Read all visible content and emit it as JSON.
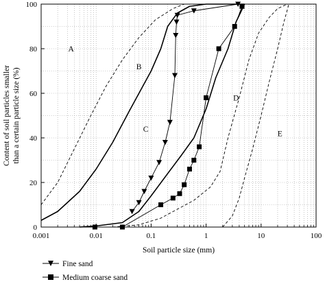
{
  "chart_data": {
    "type": "line",
    "x_scale": "log",
    "xlim": [
      0.001,
      100
    ],
    "ylim": [
      0,
      100
    ],
    "xlabel": "Soil particle size (mm)",
    "ylabel_lines": [
      "Content of soil particles smaller",
      "than a certain particle size (%)"
    ],
    "x_ticks": [
      {
        "value": 0.001,
        "label": "0.001"
      },
      {
        "value": 0.01,
        "label": "0.01"
      },
      {
        "value": 0.1,
        "label": "0.1"
      },
      {
        "value": 1,
        "label": "1"
      },
      {
        "value": 10,
        "label": "10"
      },
      {
        "value": 100,
        "label": "100"
      }
    ],
    "y_ticks": [
      {
        "value": 0,
        "label": "0"
      },
      {
        "value": 20,
        "label": "20"
      },
      {
        "value": 40,
        "label": "40"
      },
      {
        "value": 60,
        "label": "60"
      },
      {
        "value": 80,
        "label": "80"
      },
      {
        "value": 100,
        "label": "100"
      }
    ],
    "grid": "dotted",
    "legend_position": "bottom-left",
    "region_labels": [
      {
        "label": "A",
        "x": 0.0035,
        "y": 80
      },
      {
        "label": "B",
        "x": 0.06,
        "y": 72
      },
      {
        "label": "C",
        "x": 0.08,
        "y": 44
      },
      {
        "label": "D",
        "x": 3.5,
        "y": 58
      },
      {
        "label": "E",
        "x": 22,
        "y": 42
      }
    ],
    "boundaries": [
      {
        "style": "dashed",
        "points": [
          [
            0.001,
            10
          ],
          [
            0.002,
            20
          ],
          [
            0.004,
            35
          ],
          [
            0.008,
            50
          ],
          [
            0.015,
            63
          ],
          [
            0.03,
            75
          ],
          [
            0.06,
            85
          ],
          [
            0.12,
            93
          ],
          [
            0.25,
            98
          ],
          [
            0.4,
            100
          ]
        ]
      },
      {
        "style": "solid",
        "points": [
          [
            0.001,
            3
          ],
          [
            0.002,
            7
          ],
          [
            0.005,
            16
          ],
          [
            0.01,
            26
          ],
          [
            0.02,
            38
          ],
          [
            0.04,
            52
          ],
          [
            0.07,
            63
          ],
          [
            0.1,
            70
          ],
          [
            0.15,
            80
          ],
          [
            0.2,
            90
          ],
          [
            0.3,
            96
          ],
          [
            0.5,
            99
          ],
          [
            1,
            100
          ],
          [
            5,
            100
          ]
        ]
      },
      {
        "style": "solid",
        "points": [
          [
            0.005,
            0
          ],
          [
            0.01,
            0.5
          ],
          [
            0.03,
            2
          ],
          [
            0.06,
            7
          ],
          [
            0.1,
            14
          ],
          [
            0.2,
            24
          ],
          [
            0.35,
            32
          ],
          [
            0.6,
            40
          ],
          [
            1,
            53
          ],
          [
            1.5,
            67
          ],
          [
            2.5,
            80
          ],
          [
            3.5,
            92
          ],
          [
            5,
            100
          ]
        ]
      },
      {
        "style": "dashed",
        "points": [
          [
            0.02,
            0
          ],
          [
            0.06,
            1
          ],
          [
            0.15,
            4
          ],
          [
            0.3,
            8
          ],
          [
            0.6,
            12
          ],
          [
            1.2,
            18
          ],
          [
            1.8,
            25
          ],
          [
            2.5,
            40
          ],
          [
            4,
            58
          ],
          [
            6,
            75
          ],
          [
            9,
            87
          ],
          [
            14,
            94
          ],
          [
            20,
            98
          ],
          [
            30,
            100
          ]
        ]
      },
      {
        "style": "dashed",
        "points": [
          [
            2,
            0
          ],
          [
            3,
            5
          ],
          [
            4,
            13
          ],
          [
            5,
            22
          ],
          [
            7,
            35
          ],
          [
            10,
            50
          ],
          [
            14,
            65
          ],
          [
            20,
            80
          ],
          [
            26,
            92
          ],
          [
            32,
            100
          ]
        ]
      }
    ],
    "series": [
      {
        "name": "Fine sand",
        "marker": "triangle-down",
        "x": [
          0.045,
          0.06,
          0.075,
          0.1,
          0.14,
          0.18,
          0.22,
          0.27,
          0.28,
          0.29,
          0.3,
          0.6,
          3.8
        ],
        "y": [
          7,
          11,
          16,
          22,
          29,
          38,
          47,
          68,
          86,
          92,
          95,
          97,
          100
        ]
      },
      {
        "name": "Medium coarse sand",
        "marker": "square",
        "x": [
          0.0095,
          0.03,
          0.15,
          0.25,
          0.33,
          0.4,
          0.5,
          0.6,
          0.75,
          1.0,
          1.7,
          3.3,
          4.5
        ],
        "y": [
          0,
          0,
          10,
          13,
          15,
          19,
          26,
          30,
          36,
          58,
          80,
          90,
          99
        ]
      }
    ]
  }
}
